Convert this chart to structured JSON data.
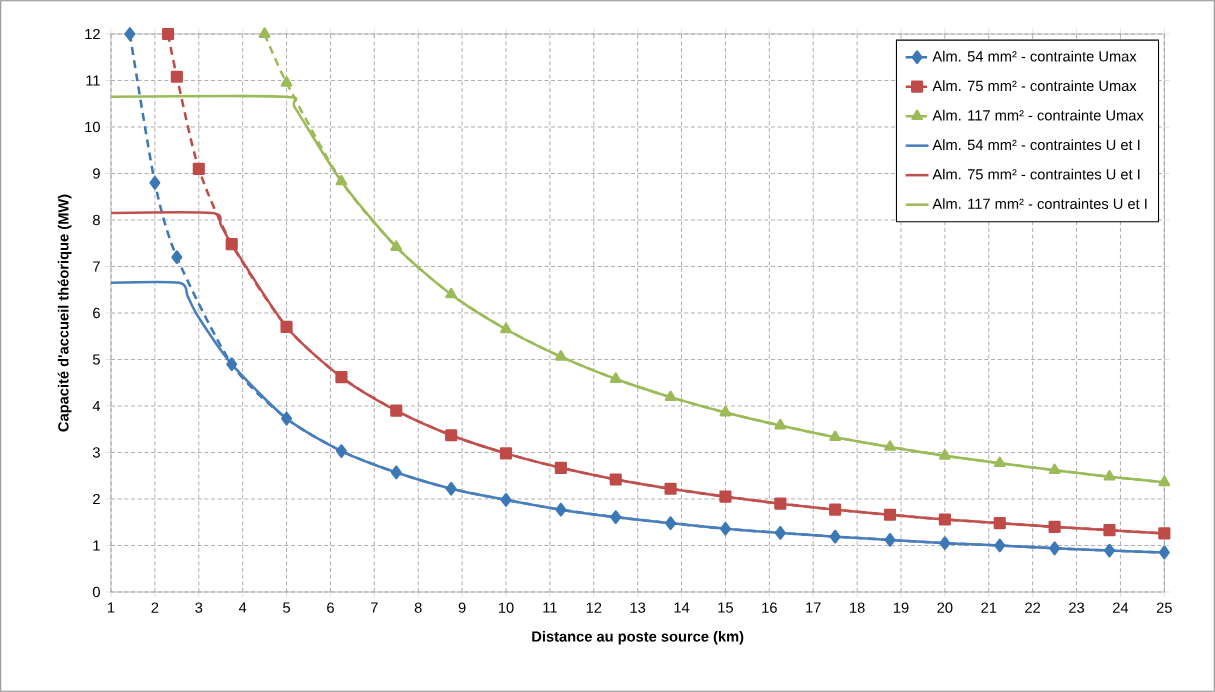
{
  "chart_data": {
    "type": "line",
    "xlabel": "Distance au poste source (km)",
    "ylabel": "Capacité d'accueil théorique (MW)",
    "xlim": [
      1,
      25
    ],
    "ylim": [
      0,
      12
    ],
    "xticks": [
      1,
      2,
      3,
      4,
      5,
      6,
      7,
      8,
      9,
      10,
      11,
      12,
      13,
      14,
      15,
      16,
      17,
      18,
      19,
      20,
      21,
      22,
      23,
      24,
      25
    ],
    "yticks": [
      0,
      1,
      2,
      3,
      4,
      5,
      6,
      7,
      8,
      9,
      10,
      11,
      12
    ],
    "grid": true,
    "legend": "top right",
    "series": [
      {
        "name": "Alm. 54 mm² - contrainte Umax",
        "color": "#3c78b5",
        "marker": "diamond",
        "line_style": "dashed",
        "x": [
          1.43,
          2,
          2.5,
          3.75,
          5,
          6.25,
          7.5,
          8.75,
          10,
          11.25,
          12.5,
          13.75,
          15,
          16.25,
          17.5,
          18.75,
          20,
          21.25,
          22.5,
          23.75,
          25
        ],
        "values": [
          12,
          8.8,
          7.2,
          4.9,
          3.73,
          3.03,
          2.57,
          2.22,
          1.98,
          1.77,
          1.61,
          1.48,
          1.36,
          1.27,
          1.19,
          1.12,
          1.05,
          1.0,
          0.94,
          0.89,
          0.85
        ]
      },
      {
        "name": "Alm. 75 mm² - contrainte Umax",
        "color": "#be4b48",
        "marker": "square",
        "line_style": "dashed",
        "x": [
          2.3,
          2.5,
          3,
          3.75,
          5,
          6.25,
          7.5,
          8.75,
          10,
          11.25,
          12.5,
          13.75,
          15,
          16.25,
          17.5,
          18.75,
          20,
          21.25,
          22.5,
          23.75,
          25
        ],
        "values": [
          12,
          11.08,
          9.1,
          7.48,
          5.7,
          4.62,
          3.9,
          3.37,
          2.98,
          2.67,
          2.42,
          2.22,
          2.05,
          1.9,
          1.77,
          1.66,
          1.56,
          1.48,
          1.4,
          1.33,
          1.26
        ]
      },
      {
        "name": "Alm. 117 mm² - contrainte Umax",
        "color": "#9bbb59",
        "marker": "triangle",
        "line_style": "dashed",
        "x": [
          4.5,
          5,
          6.25,
          7.5,
          8.75,
          10,
          11.25,
          12.5,
          13.75,
          15,
          16.25,
          17.5,
          18.75,
          20,
          21.25,
          22.5,
          23.75,
          25
        ],
        "values": [
          12,
          10.95,
          8.83,
          7.42,
          6.4,
          5.65,
          5.06,
          4.58,
          4.19,
          3.86,
          3.58,
          3.33,
          3.12,
          2.93,
          2.77,
          2.62,
          2.48,
          2.36
        ]
      },
      {
        "name": "Alm. 54 mm² - contraintes U et I",
        "color": "#4a7ebb",
        "marker": "none",
        "line_style": "solid",
        "x": [
          1,
          2.55,
          2.75,
          3,
          3.75,
          5,
          6.25,
          7.5,
          8.75,
          10,
          11.25,
          12.5,
          13.75,
          15,
          16.25,
          17.5,
          18.75,
          20,
          21.25,
          22.5,
          23.75,
          25
        ],
        "values": [
          6.65,
          6.65,
          6.35,
          5.9,
          4.9,
          3.73,
          3.03,
          2.57,
          2.22,
          1.98,
          1.77,
          1.61,
          1.48,
          1.36,
          1.27,
          1.19,
          1.12,
          1.05,
          1.0,
          0.94,
          0.89,
          0.85
        ]
      },
      {
        "name": "Alm. 75 mm² - contraintes U et I",
        "color": "#c0504d",
        "marker": "none",
        "line_style": "solid",
        "x": [
          1,
          3.3,
          3.5,
          3.75,
          5,
          6.25,
          7.5,
          8.75,
          10,
          11.25,
          12.5,
          13.75,
          15,
          16.25,
          17.5,
          18.75,
          20,
          21.25,
          22.5,
          23.75,
          25
        ],
        "values": [
          8.15,
          8.15,
          7.9,
          7.48,
          5.7,
          4.62,
          3.9,
          3.37,
          2.98,
          2.67,
          2.42,
          2.22,
          2.05,
          1.9,
          1.77,
          1.66,
          1.56,
          1.48,
          1.4,
          1.33,
          1.26
        ]
      },
      {
        "name": "Alm. 117 mm² - contraintes U et I",
        "color": "#9bbb59",
        "marker": "none",
        "line_style": "solid",
        "x": [
          1,
          4.95,
          5.2,
          6.25,
          7.5,
          8.75,
          10,
          11.25,
          12.5,
          13.75,
          15,
          16.25,
          17.5,
          18.75,
          20,
          21.25,
          22.5,
          23.75,
          25
        ],
        "values": [
          10.65,
          10.65,
          10.4,
          8.83,
          7.42,
          6.4,
          5.65,
          5.06,
          4.58,
          4.19,
          3.86,
          3.58,
          3.33,
          3.12,
          2.93,
          2.77,
          2.62,
          2.48,
          2.36
        ]
      }
    ]
  }
}
